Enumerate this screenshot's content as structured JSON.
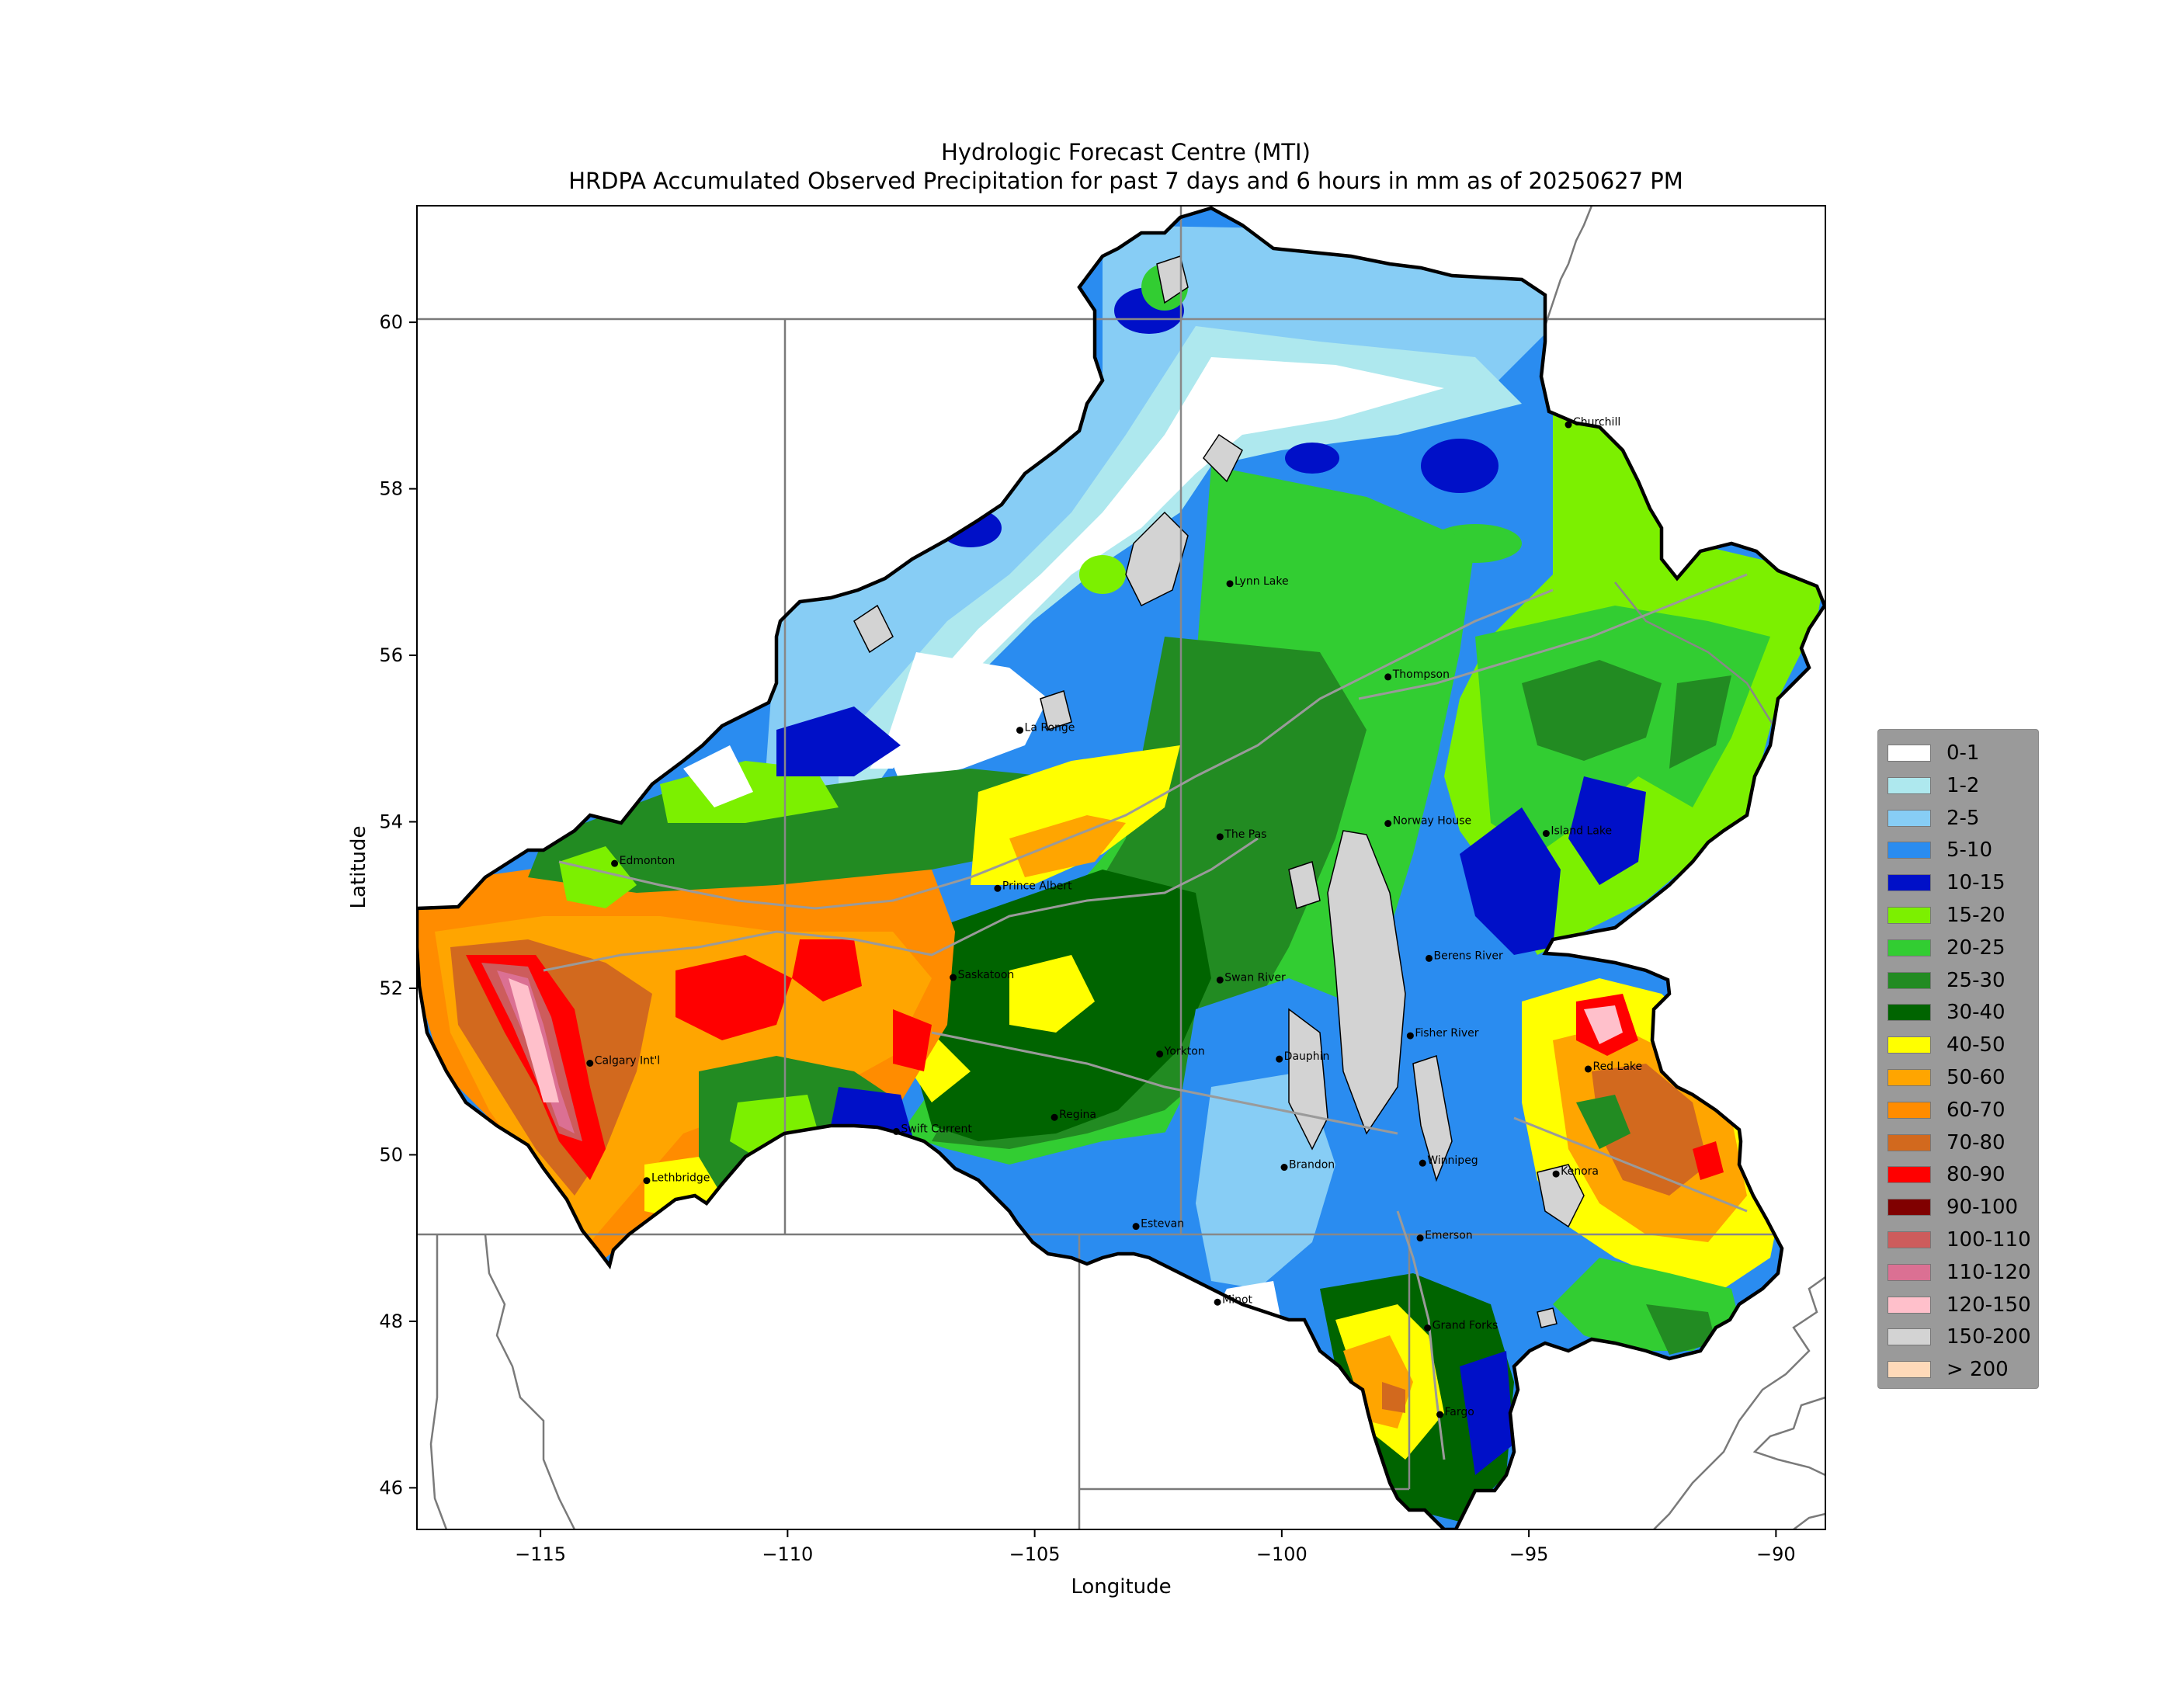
{
  "title": {
    "line1": "Hydrologic Forecast Centre (MTI)",
    "line2": "HRDPA Accumulated Observed Precipitation for past 7 days and 6 hours in mm as of 20250627 PM"
  },
  "axes": {
    "xlabel": "Longitude",
    "ylabel": "Latitude",
    "xlim": [
      -117.5,
      -89.0
    ],
    "ylim": [
      45.5,
      61.4
    ],
    "xticks": [
      "−115",
      "−110",
      "−105",
      "−100",
      "−95",
      "−90"
    ],
    "yticks": [
      "46",
      "48",
      "50",
      "52",
      "54",
      "56",
      "58",
      "60"
    ]
  },
  "legend": {
    "items": [
      {
        "label": "0-1",
        "color": "#ffffff"
      },
      {
        "label": "1-2",
        "color": "#aee8ee"
      },
      {
        "label": "2-5",
        "color": "#87cdf5"
      },
      {
        "label": "5-10",
        "color": "#2a8cf0"
      },
      {
        "label": "10-15",
        "color": "#0010c8"
      },
      {
        "label": "15-20",
        "color": "#7cf000"
      },
      {
        "label": "20-25",
        "color": "#32cd32"
      },
      {
        "label": "25-30",
        "color": "#228b22"
      },
      {
        "label": "30-40",
        "color": "#006400"
      },
      {
        "label": "40-50",
        "color": "#ffff00"
      },
      {
        "label": "50-60",
        "color": "#ffa500"
      },
      {
        "label": "60-70",
        "color": "#ff8c00"
      },
      {
        "label": "70-80",
        "color": "#d2691e"
      },
      {
        "label": "80-90",
        "color": "#ff0000"
      },
      {
        "label": "90-100",
        "color": "#800000"
      },
      {
        "label": "100-110",
        "color": "#cd5c5c"
      },
      {
        "label": "110-120",
        "color": "#db7093"
      },
      {
        "label": "120-150",
        "color": "#ffc0cb"
      },
      {
        "label": "150-200",
        "color": "#d3d3d3"
      },
      {
        "label": "> 200",
        "color": "#ffdab9"
      }
    ]
  },
  "cities": [
    {
      "name": "Churchill",
      "lon": -94.2,
      "lat": 58.77
    },
    {
      "name": "Lynn Lake",
      "lon": -101.05,
      "lat": 56.86
    },
    {
      "name": "Thompson",
      "lon": -97.85,
      "lat": 55.74
    },
    {
      "name": "La Ronge",
      "lon": -105.3,
      "lat": 55.1
    },
    {
      "name": "Edmonton",
      "lon": -113.5,
      "lat": 53.5
    },
    {
      "name": "Prince Albert",
      "lon": -105.75,
      "lat": 53.2
    },
    {
      "name": "The Pas",
      "lon": -101.25,
      "lat": 53.82
    },
    {
      "name": "Norway House",
      "lon": -97.85,
      "lat": 53.98
    },
    {
      "name": "Island Lake",
      "lon": -94.65,
      "lat": 53.86
    },
    {
      "name": "Saskatoon",
      "lon": -106.65,
      "lat": 52.13
    },
    {
      "name": "Swan River",
      "lon": -101.25,
      "lat": 52.1
    },
    {
      "name": "Berens River",
      "lon": -97.02,
      "lat": 52.36
    },
    {
      "name": "Calgary Int'l",
      "lon": -114.0,
      "lat": 51.1
    },
    {
      "name": "Yorkton",
      "lon": -102.47,
      "lat": 51.21
    },
    {
      "name": "Dauphin",
      "lon": -100.05,
      "lat": 51.15
    },
    {
      "name": "Fisher River",
      "lon": -97.4,
      "lat": 51.43
    },
    {
      "name": "Red Lake",
      "lon": -93.8,
      "lat": 51.03
    },
    {
      "name": "Swift Current",
      "lon": -107.8,
      "lat": 50.28
    },
    {
      "name": "Regina",
      "lon": -104.6,
      "lat": 50.45
    },
    {
      "name": "Brandon",
      "lon": -99.95,
      "lat": 49.85
    },
    {
      "name": "Winnipeg",
      "lon": -97.15,
      "lat": 49.9
    },
    {
      "name": "Kenora",
      "lon": -94.45,
      "lat": 49.77
    },
    {
      "name": "Lethbridge",
      "lon": -112.85,
      "lat": 49.69
    },
    {
      "name": "Estevan",
      "lon": -102.95,
      "lat": 49.14
    },
    {
      "name": "Emerson",
      "lon": -97.2,
      "lat": 49.0
    },
    {
      "name": "Minot",
      "lon": -101.3,
      "lat": 48.23
    },
    {
      "name": "Grand Forks",
      "lon": -97.05,
      "lat": 47.92
    },
    {
      "name": "Fargo",
      "lon": -96.8,
      "lat": 46.88
    }
  ]
}
